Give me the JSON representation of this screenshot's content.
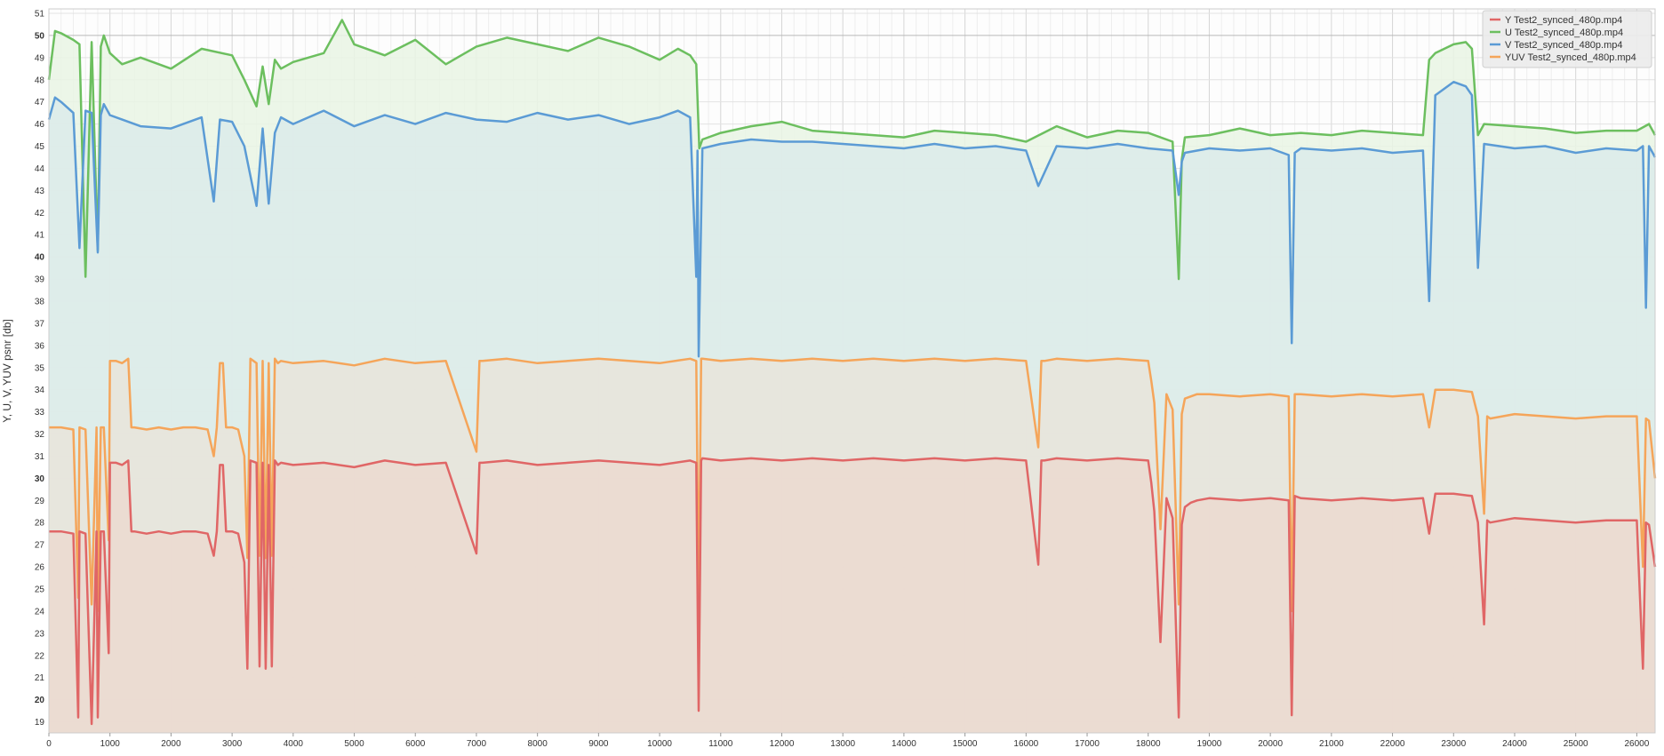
{
  "chart_data": {
    "type": "area",
    "title": "",
    "xlabel": "",
    "ylabel": "Y, U, V, YUV psnr [db]",
    "xlim": [
      0,
      26300
    ],
    "ylim": [
      18.5,
      51.2
    ],
    "x_ticks": [
      0,
      1000,
      2000,
      3000,
      4000,
      5000,
      6000,
      7000,
      8000,
      9000,
      10000,
      11000,
      12000,
      13000,
      14000,
      15000,
      16000,
      17000,
      18000,
      19000,
      20000,
      21000,
      22000,
      23000,
      24000,
      25000,
      26000
    ],
    "y_ticks": [
      19,
      20,
      21,
      22,
      23,
      24,
      25,
      26,
      27,
      28,
      29,
      30,
      31,
      32,
      33,
      34,
      35,
      36,
      37,
      38,
      39,
      40,
      41,
      42,
      43,
      44,
      45,
      46,
      47,
      48,
      49,
      50,
      51
    ],
    "y_major_ticks": [
      20,
      30,
      40,
      50
    ],
    "grid": true,
    "legend_position": "top-right",
    "series": [
      {
        "name": "Y Test2_synced_480p.mp4",
        "color": "#e06666",
        "fill": "#ebd9d0",
        "x": [
          0,
          200,
          400,
          480,
          500,
          600,
          700,
          780,
          800,
          850,
          900,
          980,
          1000,
          1100,
          1200,
          1300,
          1350,
          1400,
          1600,
          1800,
          2000,
          2200,
          2400,
          2600,
          2700,
          2750,
          2800,
          2850,
          2900,
          3000,
          3100,
          3200,
          3250,
          3300,
          3400,
          3450,
          3500,
          3550,
          3600,
          3650,
          3700,
          3750,
          3800,
          4000,
          4500,
          5000,
          5500,
          6000,
          6500,
          7000,
          7050,
          7100,
          7500,
          8000,
          8500,
          9000,
          9500,
          10000,
          10500,
          10600,
          10640,
          10680,
          10700,
          11000,
          11500,
          12000,
          12500,
          13000,
          13500,
          14000,
          14500,
          15000,
          15500,
          16000,
          16200,
          16250,
          16300,
          16500,
          17000,
          17500,
          18000,
          18050,
          18100,
          18200,
          18300,
          18400,
          18500,
          18550,
          18600,
          18700,
          18800,
          19000,
          19500,
          20000,
          20300,
          20350,
          20400,
          20500,
          21000,
          21500,
          22000,
          22500,
          22600,
          22700,
          23000,
          23300,
          23400,
          23500,
          23550,
          23600,
          24000,
          24500,
          25000,
          25500,
          26000,
          26100,
          26150,
          26200,
          26300
        ],
        "values": [
          27.6,
          27.6,
          27.5,
          19.2,
          27.6,
          27.5,
          18.9,
          27.6,
          19.2,
          27.6,
          27.6,
          22.1,
          30.7,
          30.7,
          30.6,
          30.8,
          27.6,
          27.6,
          27.5,
          27.6,
          27.5,
          27.6,
          27.6,
          27.5,
          26.5,
          27.6,
          30.6,
          30.6,
          27.6,
          27.6,
          27.5,
          26.2,
          21.4,
          30.8,
          30.7,
          21.5,
          30.7,
          21.4,
          30.6,
          21.5,
          30.8,
          30.6,
          30.7,
          30.6,
          30.7,
          30.5,
          30.8,
          30.6,
          30.7,
          26.6,
          30.7,
          30.7,
          30.8,
          30.6,
          30.7,
          30.8,
          30.7,
          30.6,
          30.8,
          30.7,
          19.5,
          30.8,
          30.9,
          30.8,
          30.9,
          30.8,
          30.9,
          30.8,
          30.9,
          30.8,
          30.9,
          30.8,
          30.9,
          30.8,
          26.1,
          30.8,
          30.8,
          30.9,
          30.8,
          30.9,
          30.8,
          29.8,
          28.5,
          22.6,
          29.1,
          28.2,
          19.2,
          27.9,
          28.7,
          28.9,
          29.0,
          29.1,
          29.0,
          29.1,
          29.0,
          19.3,
          29.2,
          29.1,
          29.0,
          29.1,
          29.0,
          29.1,
          27.5,
          29.3,
          29.3,
          29.2,
          28.0,
          23.4,
          28.1,
          28.0,
          28.2,
          28.1,
          28.0,
          28.1,
          28.1,
          21.4,
          28.0,
          27.9,
          26.0
        ]
      },
      {
        "name": "U Test2_synced_480p.mp4",
        "color": "#6cbf5f",
        "fill": "#e9f5e4",
        "x": [
          0,
          100,
          200,
          400,
          500,
          600,
          700,
          800,
          850,
          900,
          1000,
          1200,
          1500,
          2000,
          2500,
          3000,
          3200,
          3400,
          3500,
          3600,
          3700,
          3800,
          4000,
          4500,
          4800,
          5000,
          5500,
          6000,
          6500,
          7000,
          7500,
          8000,
          8500,
          9000,
          9500,
          10000,
          10300,
          10500,
          10600,
          10650,
          10700,
          11000,
          11500,
          12000,
          12500,
          13000,
          13500,
          14000,
          14500,
          15000,
          15500,
          16000,
          16500,
          17000,
          17500,
          18000,
          18400,
          18500,
          18550,
          18600,
          19000,
          19500,
          20000,
          20500,
          21000,
          21500,
          22000,
          22500,
          22600,
          22700,
          23000,
          23200,
          23300,
          23400,
          23500,
          24000,
          24500,
          25000,
          25500,
          26000,
          26200,
          26300
        ],
        "values": [
          48.0,
          50.2,
          50.1,
          49.8,
          49.6,
          39.1,
          49.7,
          40.3,
          49.5,
          50.0,
          49.2,
          48.7,
          49.0,
          48.5,
          49.4,
          49.1,
          48.0,
          46.8,
          48.6,
          46.9,
          48.9,
          48.5,
          48.8,
          49.2,
          50.7,
          49.6,
          49.1,
          49.8,
          48.7,
          49.5,
          49.9,
          49.6,
          49.3,
          49.9,
          49.5,
          48.9,
          49.4,
          49.1,
          48.7,
          44.9,
          45.3,
          45.6,
          45.9,
          46.1,
          45.7,
          45.6,
          45.5,
          45.4,
          45.7,
          45.6,
          45.5,
          45.2,
          45.9,
          45.4,
          45.7,
          45.6,
          45.2,
          39.0,
          44.4,
          45.4,
          45.5,
          45.8,
          45.5,
          45.6,
          45.5,
          45.7,
          45.6,
          45.5,
          48.9,
          49.2,
          49.6,
          49.7,
          49.4,
          45.5,
          46.0,
          45.9,
          45.8,
          45.6,
          45.7,
          45.7,
          46.0,
          45.5
        ]
      },
      {
        "name": "V Test2_synced_480p.mp4",
        "color": "#5b9bd5",
        "fill": "#dcebea",
        "x": [
          0,
          100,
          200,
          400,
          500,
          600,
          700,
          800,
          850,
          900,
          1000,
          1200,
          1500,
          2000,
          2500,
          2700,
          2800,
          3000,
          3200,
          3400,
          3500,
          3600,
          3700,
          3800,
          4000,
          4500,
          5000,
          5500,
          6000,
          6500,
          7000,
          7500,
          8000,
          8500,
          9000,
          9500,
          10000,
          10300,
          10500,
          10600,
          10620,
          10640,
          10700,
          11000,
          11500,
          12000,
          12500,
          13000,
          13500,
          14000,
          14500,
          15000,
          15500,
          16000,
          16200,
          16500,
          17000,
          17500,
          18000,
          18400,
          18500,
          18550,
          18600,
          19000,
          19500,
          20000,
          20300,
          20350,
          20400,
          20500,
          21000,
          21500,
          22000,
          22500,
          22600,
          22700,
          23000,
          23200,
          23300,
          23400,
          23500,
          24000,
          24500,
          25000,
          25500,
          26000,
          26100,
          26150,
          26200,
          26300
        ],
        "values": [
          46.2,
          47.2,
          47.0,
          46.5,
          40.4,
          46.6,
          46.5,
          40.2,
          46.4,
          46.9,
          46.4,
          46.2,
          45.9,
          45.8,
          46.3,
          42.5,
          46.2,
          46.1,
          45.0,
          42.3,
          45.8,
          42.4,
          45.6,
          46.3,
          46.0,
          46.6,
          45.9,
          46.4,
          46.0,
          46.5,
          46.2,
          46.1,
          46.5,
          46.2,
          46.4,
          46.0,
          46.3,
          46.6,
          46.3,
          39.1,
          44.8,
          35.5,
          44.9,
          45.1,
          45.3,
          45.2,
          45.2,
          45.1,
          45.0,
          44.9,
          45.1,
          44.9,
          45.0,
          44.8,
          43.2,
          45.0,
          44.9,
          45.1,
          44.9,
          44.8,
          42.8,
          44.3,
          44.7,
          44.9,
          44.8,
          44.9,
          44.6,
          36.1,
          44.7,
          44.9,
          44.8,
          44.9,
          44.7,
          44.8,
          38.0,
          47.3,
          47.9,
          47.7,
          47.3,
          39.5,
          45.1,
          44.9,
          45.0,
          44.7,
          44.9,
          44.8,
          45.0,
          37.7,
          45.0,
          44.5
        ]
      },
      {
        "name": "YUV Test2_synced_480p.mp4",
        "color": "#f5a55a",
        "fill": "#e9e4da",
        "x": [
          0,
          200,
          400,
          480,
          500,
          600,
          700,
          780,
          800,
          850,
          900,
          980,
          1000,
          1100,
          1200,
          1300,
          1350,
          1400,
          1600,
          1800,
          2000,
          2200,
          2400,
          2600,
          2700,
          2750,
          2800,
          2850,
          2900,
          3000,
          3100,
          3200,
          3250,
          3300,
          3400,
          3450,
          3500,
          3550,
          3600,
          3650,
          3700,
          3750,
          3800,
          4000,
          4500,
          5000,
          5500,
          6000,
          6500,
          7000,
          7050,
          7100,
          7500,
          8000,
          8500,
          9000,
          9500,
          10000,
          10500,
          10600,
          10640,
          10680,
          10700,
          11000,
          11500,
          12000,
          12500,
          13000,
          13500,
          14000,
          14500,
          15000,
          15500,
          16000,
          16200,
          16250,
          16300,
          16500,
          17000,
          17500,
          18000,
          18050,
          18100,
          18200,
          18300,
          18400,
          18500,
          18550,
          18600,
          18700,
          18800,
          19000,
          19500,
          20000,
          20300,
          20350,
          20400,
          20500,
          21000,
          21500,
          22000,
          22500,
          22600,
          22700,
          23000,
          23300,
          23400,
          23500,
          23550,
          23600,
          24000,
          24500,
          25000,
          25500,
          26000,
          26100,
          26150,
          26200,
          26300
        ],
        "values": [
          32.3,
          32.3,
          32.2,
          24.6,
          32.3,
          32.2,
          24.3,
          32.3,
          24.0,
          32.3,
          32.3,
          27.2,
          35.3,
          35.3,
          35.2,
          35.4,
          32.3,
          32.3,
          32.2,
          32.3,
          32.2,
          32.3,
          32.3,
          32.2,
          31.0,
          32.3,
          35.2,
          35.2,
          32.3,
          32.3,
          32.2,
          31.0,
          26.4,
          35.4,
          35.2,
          26.5,
          35.3,
          26.4,
          35.2,
          26.5,
          35.4,
          35.2,
          35.3,
          35.2,
          35.3,
          35.1,
          35.4,
          35.2,
          35.3,
          31.2,
          35.3,
          35.3,
          35.4,
          35.2,
          35.3,
          35.4,
          35.3,
          35.2,
          35.4,
          35.3,
          24.2,
          35.4,
          35.4,
          35.3,
          35.4,
          35.3,
          35.4,
          35.3,
          35.4,
          35.3,
          35.4,
          35.3,
          35.4,
          35.3,
          31.4,
          35.3,
          35.3,
          35.4,
          35.3,
          35.4,
          35.3,
          34.4,
          33.4,
          27.7,
          33.8,
          33.1,
          24.3,
          32.9,
          33.6,
          33.7,
          33.8,
          33.8,
          33.7,
          33.8,
          33.7,
          24.0,
          33.8,
          33.8,
          33.7,
          33.8,
          33.7,
          33.8,
          32.3,
          34.0,
          34.0,
          33.9,
          32.8,
          28.4,
          32.8,
          32.7,
          32.9,
          32.8,
          32.7,
          32.8,
          32.8,
          26.0,
          32.7,
          32.6,
          30.0
        ]
      }
    ]
  }
}
